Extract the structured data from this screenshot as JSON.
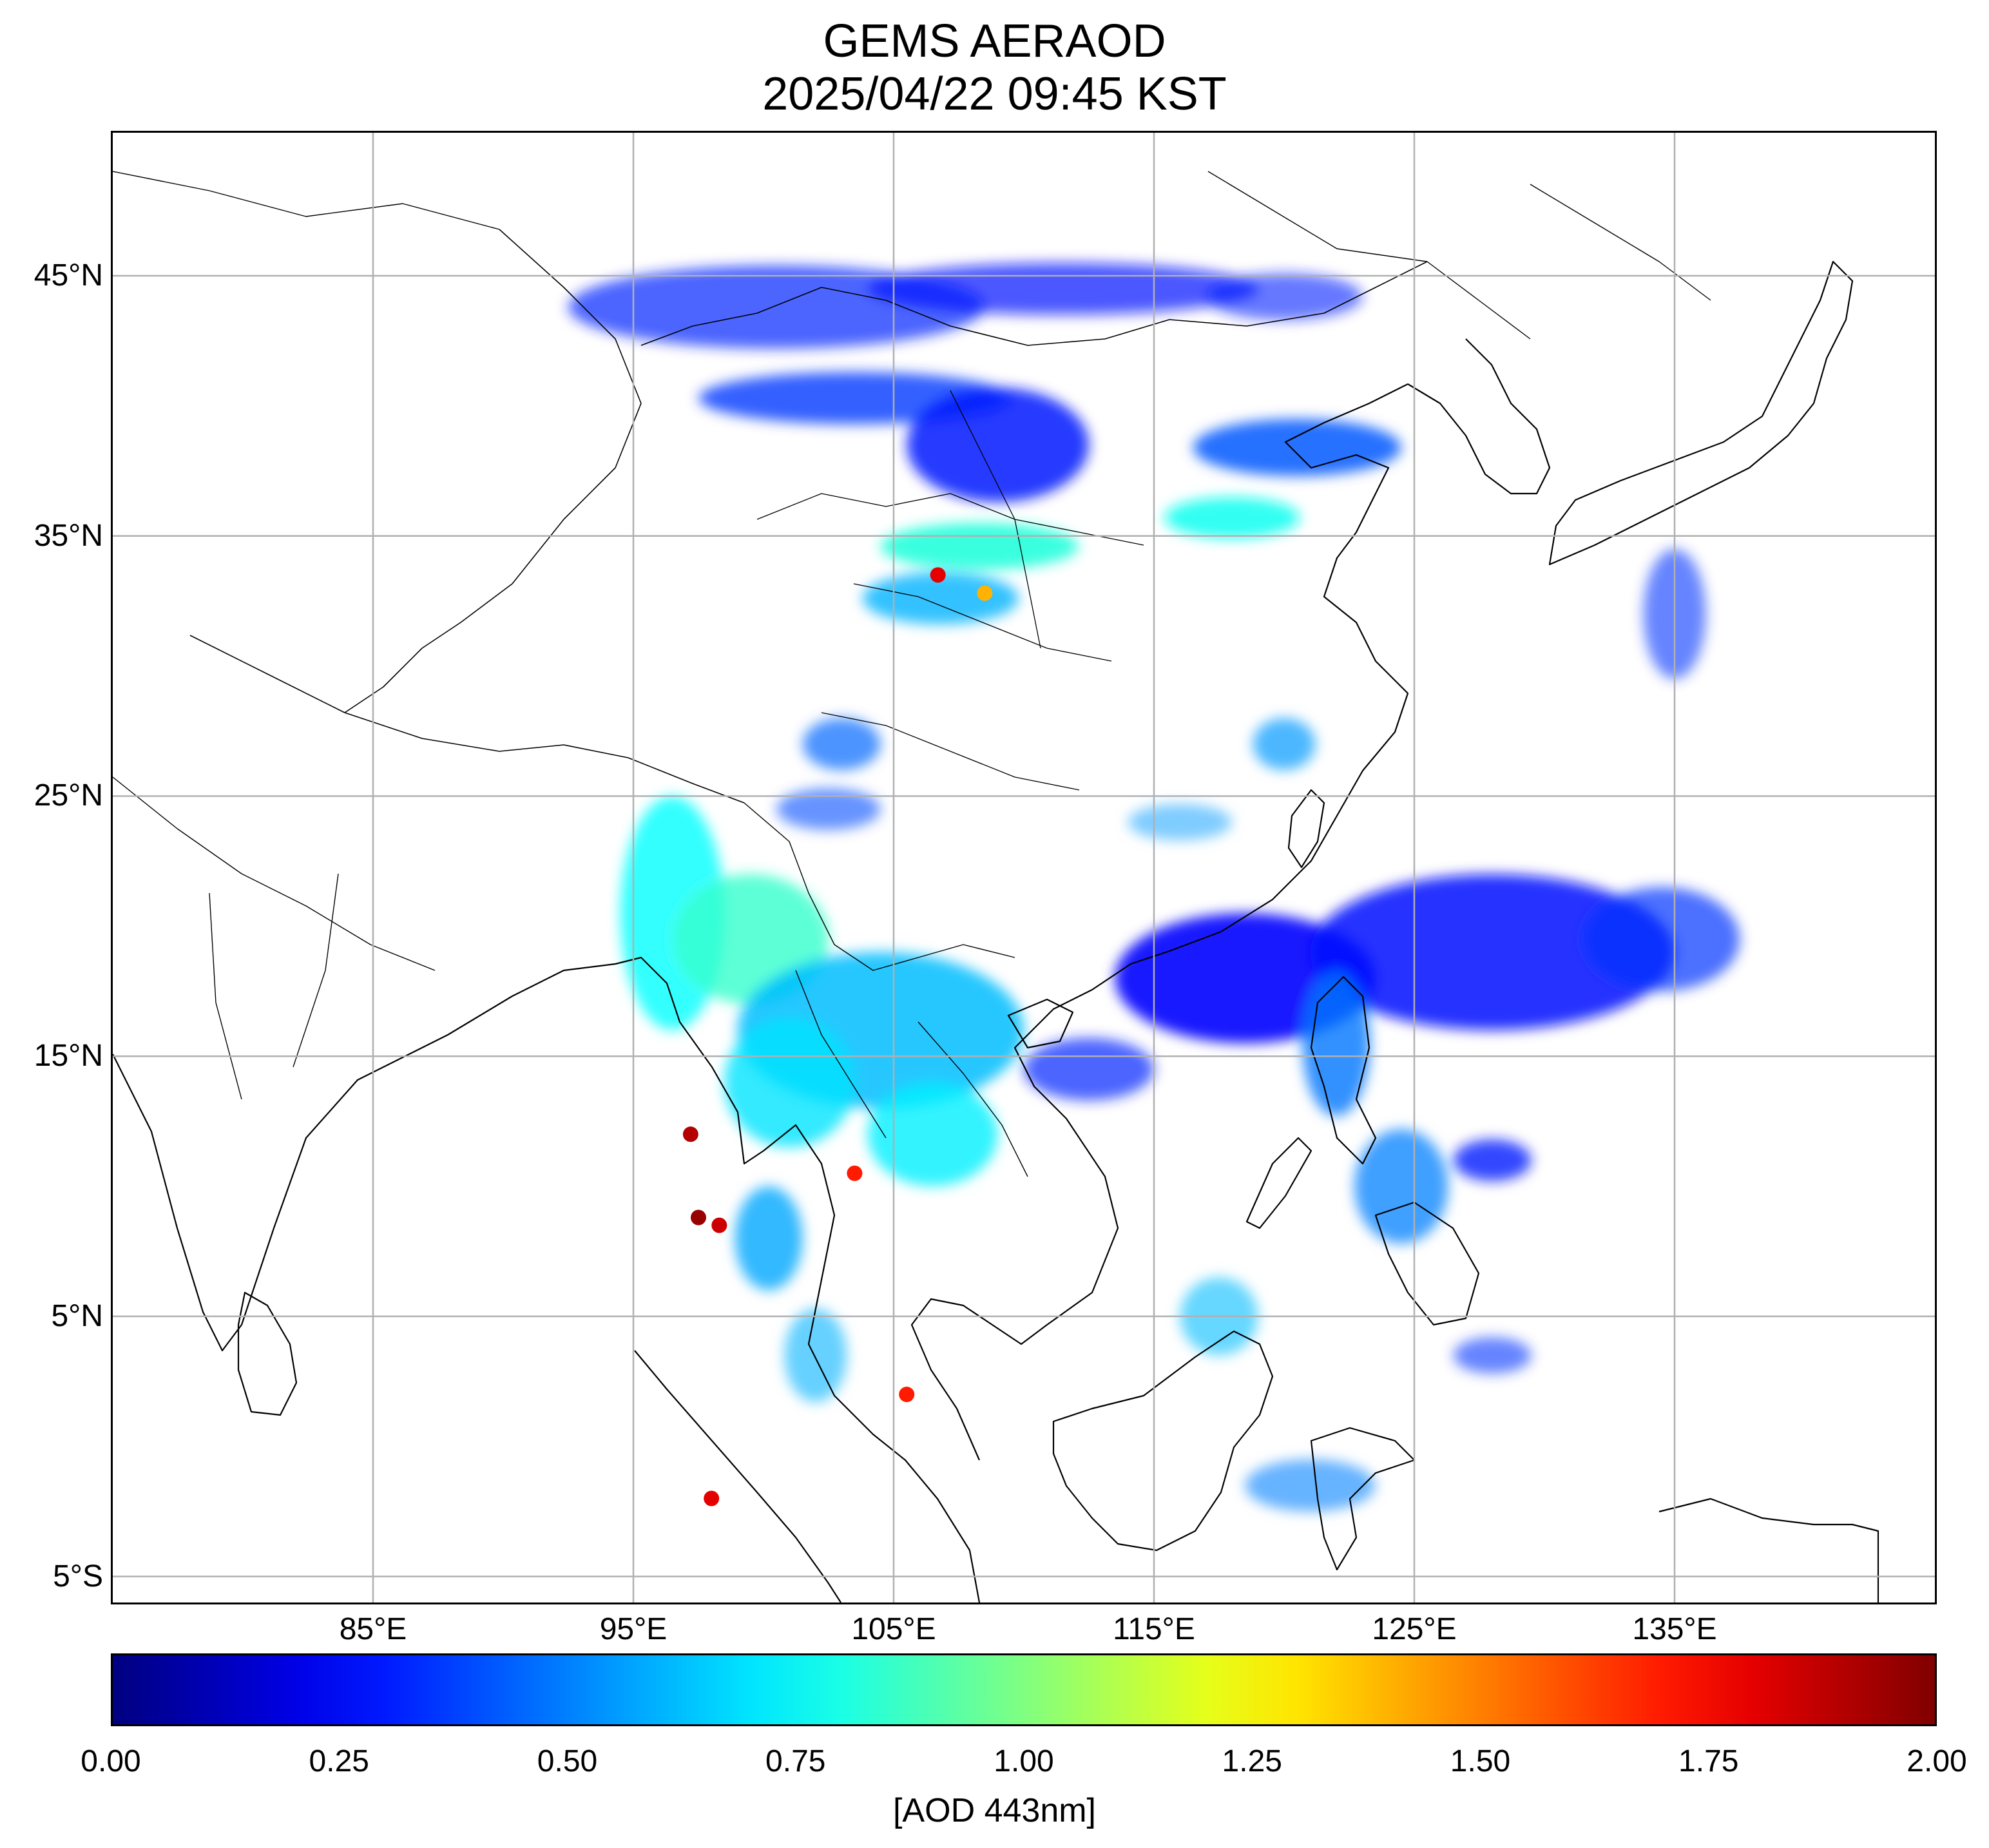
{
  "title": "GEMS AERAOD",
  "subtitle": "2025/04/22 09:45 KST",
  "map": {
    "lon_range": [
      75,
      145
    ],
    "lat_range": [
      -6,
      50.5
    ],
    "lat_ticks": [
      {
        "value": 45,
        "label": "45°N"
      },
      {
        "value": 35,
        "label": "35°N"
      },
      {
        "value": 25,
        "label": "25°N"
      },
      {
        "value": 15,
        "label": "15°N"
      },
      {
        "value": 5,
        "label": "5°N"
      },
      {
        "value": -5,
        "label": "5°S"
      }
    ],
    "lon_ticks": [
      {
        "value": 85,
        "label": "85°E"
      },
      {
        "value": 95,
        "label": "95°E"
      },
      {
        "value": 105,
        "label": "105°E"
      },
      {
        "value": 115,
        "label": "115°E"
      },
      {
        "value": 125,
        "label": "125°E"
      },
      {
        "value": 135,
        "label": "135°E"
      }
    ],
    "gridlines": true,
    "grid_color": "#b0b0b0",
    "coast_color": "#000000",
    "aod_regions": [
      {
        "lon": 100.5,
        "lat": 43.8,
        "rx": 8.0,
        "ry": 1.6,
        "aod": 0.32,
        "op": 0.7
      },
      {
        "lon": 111.5,
        "lat": 44.5,
        "rx": 7.5,
        "ry": 1.0,
        "aod": 0.28,
        "op": 0.7
      },
      {
        "lon": 120.0,
        "lat": 44.2,
        "rx": 3.0,
        "ry": 0.9,
        "aod": 0.3,
        "op": 0.6
      },
      {
        "lon": 103.5,
        "lat": 40.3,
        "rx": 6.0,
        "ry": 1.0,
        "aod": 0.36,
        "op": 0.8
      },
      {
        "lon": 109.0,
        "lat": 38.5,
        "rx": 3.5,
        "ry": 2.2,
        "aod": 0.3,
        "op": 0.85
      },
      {
        "lon": 120.5,
        "lat": 38.4,
        "rx": 4.0,
        "ry": 1.1,
        "aod": 0.42,
        "op": 0.85
      },
      {
        "lon": 118.0,
        "lat": 35.7,
        "rx": 2.6,
        "ry": 0.8,
        "aod": 0.78,
        "op": 0.85
      },
      {
        "lon": 108.3,
        "lat": 34.6,
        "rx": 3.8,
        "ry": 0.9,
        "aod": 0.82,
        "op": 0.9
      },
      {
        "lon": 106.8,
        "lat": 32.6,
        "rx": 3.0,
        "ry": 1.0,
        "aod": 0.6,
        "op": 0.8
      },
      {
        "lon": 103.0,
        "lat": 27.0,
        "rx": 1.5,
        "ry": 1.0,
        "aod": 0.45,
        "op": 0.7
      },
      {
        "lon": 102.5,
        "lat": 24.5,
        "rx": 2.0,
        "ry": 0.8,
        "aod": 0.4,
        "op": 0.6
      },
      {
        "lon": 120.0,
        "lat": 27.0,
        "rx": 1.2,
        "ry": 1.0,
        "aod": 0.55,
        "op": 0.7
      },
      {
        "lon": 116.0,
        "lat": 24.0,
        "rx": 2.0,
        "ry": 0.7,
        "aod": 0.55,
        "op": 0.5
      },
      {
        "lon": 96.5,
        "lat": 20.5,
        "rx": 2.0,
        "ry": 4.5,
        "aod": 0.75,
        "op": 0.8
      },
      {
        "lon": 99.5,
        "lat": 19.5,
        "rx": 3.0,
        "ry": 2.5,
        "aod": 0.85,
        "op": 0.8
      },
      {
        "lon": 104.5,
        "lat": 16.0,
        "rx": 5.5,
        "ry": 3.0,
        "aod": 0.62,
        "op": 0.85
      },
      {
        "lon": 101.0,
        "lat": 14.0,
        "rx": 2.5,
        "ry": 2.5,
        "aod": 0.7,
        "op": 0.8
      },
      {
        "lon": 106.5,
        "lat": 12.0,
        "rx": 2.5,
        "ry": 2.0,
        "aod": 0.72,
        "op": 0.8
      },
      {
        "lon": 100.2,
        "lat": 8.0,
        "rx": 1.3,
        "ry": 2.0,
        "aod": 0.58,
        "op": 0.8
      },
      {
        "lon": 102.0,
        "lat": 3.5,
        "rx": 1.2,
        "ry": 1.8,
        "aod": 0.6,
        "op": 0.6
      },
      {
        "lon": 118.5,
        "lat": 18.0,
        "rx": 5.0,
        "ry": 2.5,
        "aod": 0.26,
        "op": 0.9
      },
      {
        "lon": 128.0,
        "lat": 19.0,
        "rx": 7.0,
        "ry": 3.0,
        "aod": 0.27,
        "op": 0.85
      },
      {
        "lon": 134.5,
        "lat": 19.5,
        "rx": 3.0,
        "ry": 2.0,
        "aod": 0.35,
        "op": 0.7
      },
      {
        "lon": 112.5,
        "lat": 14.5,
        "rx": 2.5,
        "ry": 1.2,
        "aod": 0.32,
        "op": 0.7
      },
      {
        "lon": 122.0,
        "lat": 15.5,
        "rx": 1.3,
        "ry": 2.8,
        "aod": 0.48,
        "op": 0.8
      },
      {
        "lon": 124.5,
        "lat": 10.0,
        "rx": 1.8,
        "ry": 2.2,
        "aod": 0.5,
        "op": 0.75
      },
      {
        "lon": 128.0,
        "lat": 11.0,
        "rx": 1.5,
        "ry": 0.8,
        "aod": 0.3,
        "op": 0.8
      },
      {
        "lon": 117.5,
        "lat": 5.0,
        "rx": 1.5,
        "ry": 1.5,
        "aod": 0.62,
        "op": 0.6
      },
      {
        "lon": 121.0,
        "lat": -1.5,
        "rx": 2.5,
        "ry": 1.0,
        "aod": 0.5,
        "op": 0.6
      },
      {
        "lon": 128.0,
        "lat": 3.5,
        "rx": 1.5,
        "ry": 0.7,
        "aod": 0.35,
        "op": 0.6
      },
      {
        "lon": 135.0,
        "lat": 32.0,
        "rx": 1.2,
        "ry": 2.5,
        "aod": 0.35,
        "op": 0.6
      }
    ],
    "hotspots": [
      {
        "lon": 97.5,
        "lat": 8.8,
        "aod": 1.95
      },
      {
        "lon": 98.3,
        "lat": 8.5,
        "aod": 1.85
      },
      {
        "lon": 97.2,
        "lat": 12.0,
        "aod": 1.9
      },
      {
        "lon": 103.5,
        "lat": 10.5,
        "aod": 1.7
      },
      {
        "lon": 108.5,
        "lat": 32.8,
        "aod": 1.4
      },
      {
        "lon": 106.7,
        "lat": 33.5,
        "aod": 1.8
      },
      {
        "lon": 98.0,
        "lat": -2.0,
        "aod": 1.8
      },
      {
        "lon": 105.5,
        "lat": 2.0,
        "aod": 1.7
      }
    ]
  },
  "colorbar": {
    "min": 0.0,
    "max": 2.0,
    "colormap": "jet",
    "ticks": [
      "0.00",
      "0.25",
      "0.50",
      "0.75",
      "1.00",
      "1.25",
      "1.50",
      "1.75",
      "2.00"
    ],
    "label": "[AOD 443nm]"
  }
}
